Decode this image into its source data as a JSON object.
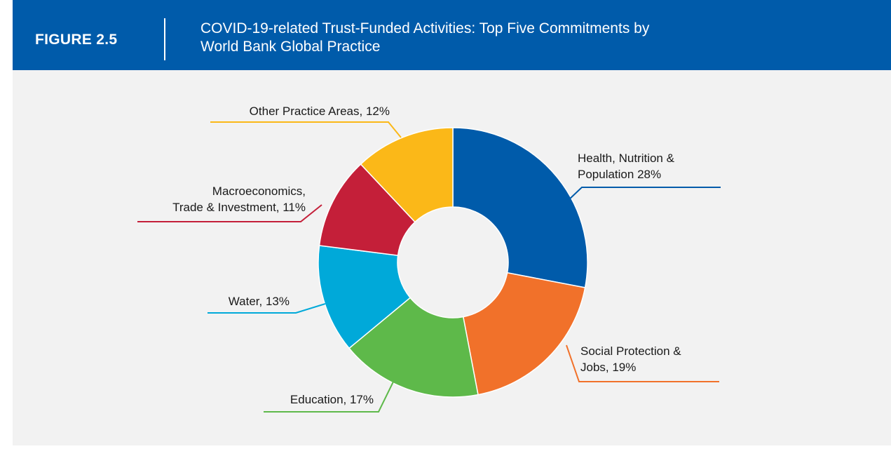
{
  "header": {
    "figure_label": "FIGURE 2.5",
    "title_line1": "COVID-19-related Trust-Funded Activities: Top Five Commitments by",
    "title_line2": "World Bank Global Practice"
  },
  "colors": {
    "header_bg": "#005BAA",
    "plot_bg": "#F2F2F2"
  },
  "chart_data": {
    "type": "pie",
    "donut": true,
    "unit": "%",
    "slices": [
      {
        "label_lines": [
          "Health, Nutrition &",
          "Population 28%"
        ],
        "value": 28,
        "color": "#005BAA"
      },
      {
        "label_lines": [
          "Social Protection &",
          "Jobs, 19%"
        ],
        "value": 19,
        "color": "#F1712A"
      },
      {
        "label_lines": [
          "Education, 17%"
        ],
        "value": 17,
        "color": "#5EB94A"
      },
      {
        "label_lines": [
          "Water, 13%"
        ],
        "value": 13,
        "color": "#00A9D9"
      },
      {
        "label_lines": [
          "Macroeconomics,",
          "Trade & Investment, 11%"
        ],
        "value": 11,
        "color": "#C41F39"
      },
      {
        "label_lines": [
          "Other Practice Areas, 12%"
        ],
        "value": 12,
        "color": "#FBB818"
      }
    ]
  }
}
